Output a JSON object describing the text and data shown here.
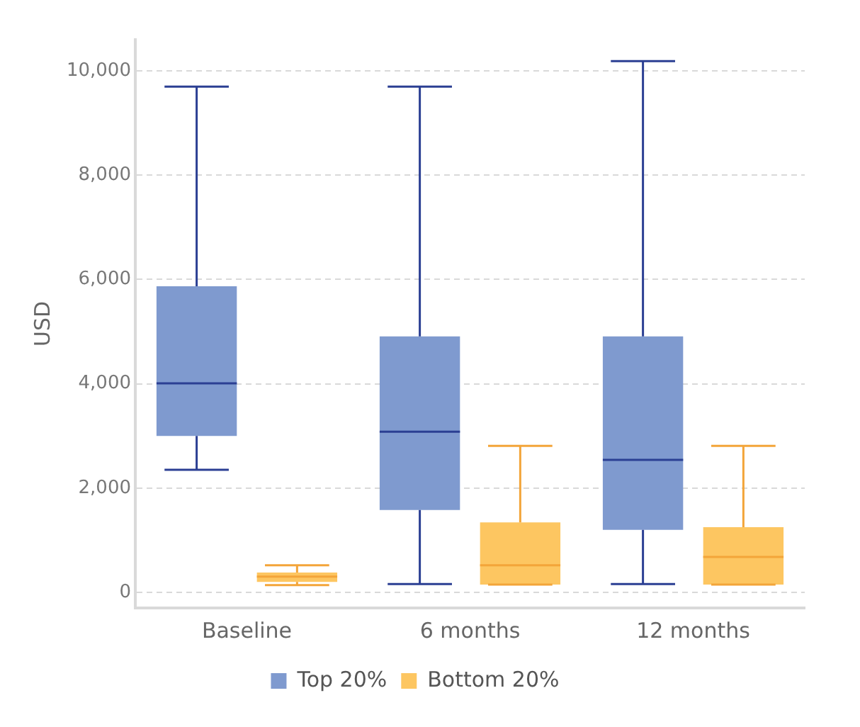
{
  "chart_data": {
    "type": "box",
    "ylabel": "USD",
    "categories": [
      "Baseline",
      "6 months",
      "12 months"
    ],
    "series": [
      {
        "name": "Top 20%",
        "color": "#7f9acf",
        "boxes": [
          {
            "low": 2350,
            "q1": 3000,
            "median": 4010,
            "q3": 5870,
            "high": 9700
          },
          {
            "low": 160,
            "q1": 1580,
            "median": 3080,
            "q3": 4910,
            "high": 9700
          },
          {
            "low": 160,
            "q1": 1200,
            "median": 2540,
            "q3": 4910,
            "high": 10190
          }
        ]
      },
      {
        "name": "Bottom 20%",
        "color": "#fdc661",
        "boxes": [
          {
            "low": 140,
            "q1": 200,
            "median": 300,
            "q3": 380,
            "high": 520
          },
          {
            "low": 150,
            "q1": 150,
            "median": 520,
            "q3": 1340,
            "high": 2810
          },
          {
            "low": 150,
            "q1": 150,
            "median": 680,
            "q3": 1250,
            "high": 2810
          }
        ]
      }
    ],
    "ylim": [
      -300,
      10600
    ],
    "yticks": [
      {
        "value": 0,
        "label": "0"
      },
      {
        "value": 2000,
        "label": "2,000"
      },
      {
        "value": 4000,
        "label": "4,000"
      },
      {
        "value": 6000,
        "label": "6,000"
      },
      {
        "value": 8000,
        "label": "8,000"
      },
      {
        "value": 10000,
        "label": "10,000"
      }
    ],
    "grid": "y",
    "legend": "bottom"
  }
}
